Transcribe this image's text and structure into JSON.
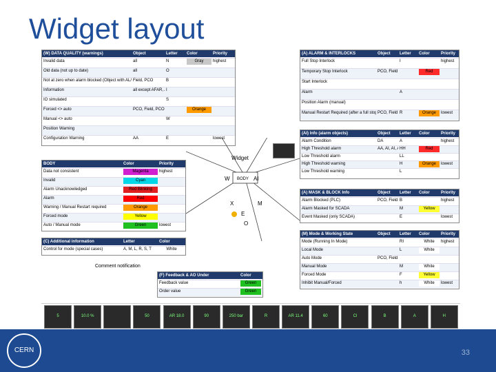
{
  "slide": {
    "title": "Widget layout",
    "page_number": "33",
    "logo_text": "CERN"
  },
  "data_quality": {
    "header": [
      "(W) DATA QUALITY (warnings)",
      "Object",
      "Letter",
      "Color",
      "Priority"
    ],
    "rows": [
      [
        "Invalid data",
        "all",
        "N",
        "Gray",
        "highest"
      ],
      [
        "Old data (not up to date)",
        "all",
        "O",
        "",
        ""
      ],
      [
        "Not at zero when alarm blocked (Object with AL/S..)",
        "Field, PCO",
        "B",
        "",
        ""
      ],
      [
        "Information",
        "all except AFAR, ASTATUS",
        "I",
        "",
        ""
      ],
      [
        "IO simulated",
        "",
        "S",
        "",
        ""
      ],
      [
        "Forced <> auto",
        "PCO, Field, PCO",
        "",
        "Orange",
        ""
      ],
      [
        "Manual <> auto",
        "",
        "W",
        "",
        ""
      ],
      [
        "Position Warning",
        "",
        "",
        "",
        ""
      ],
      [
        "Configuration Warning",
        "AA",
        "E",
        "",
        "lowest"
      ]
    ]
  },
  "alarm_objects": {
    "header": [
      "(A) ALARM & INTERLOCKS",
      "Object",
      "Letter",
      "Color",
      "Priority"
    ],
    "rows": [
      [
        "Full Stop Interlock",
        "",
        "I",
        "",
        "highest"
      ],
      [
        "Temporary Stop Interlock",
        "PCO, Field",
        "",
        "Red",
        ""
      ],
      [
        "Start Interlock",
        "",
        "",
        "",
        ""
      ],
      [
        "Alarm",
        "",
        "A",
        "",
        ""
      ],
      [
        "Position Alarm (manual)",
        "",
        "",
        "",
        ""
      ],
      [
        "Manual Restart Required (after a full stop Interlock)",
        "PCO, Field",
        "R",
        "Orange",
        "lowest"
      ]
    ]
  },
  "alarm_info": {
    "header": [
      "(AI) Info (alarm objects)",
      "Object",
      "Letter",
      "Color",
      "Priority"
    ],
    "rows": [
      [
        "Alarm Condition",
        "DA",
        "A",
        "",
        "highest"
      ],
      [
        "High Threshold alarm",
        "AA, AI, AI, AO, AIR",
        "HH",
        "Red",
        ""
      ],
      [
        "Low Threshold alarm",
        "",
        "LL",
        "",
        ""
      ],
      [
        "High Threshold warning",
        "",
        "H",
        "Orange",
        "lowest"
      ],
      [
        "Low Threshold warning",
        "",
        "L",
        "",
        ""
      ]
    ]
  },
  "mask_block": {
    "header": [
      "(A) MASK & BLOCK Info",
      "Object",
      "Letter",
      "Color",
      "Priority"
    ],
    "rows": [
      [
        "Alarm Blocked (PLC)",
        "PCO, Field, All",
        "B",
        "",
        "highest"
      ],
      [
        "Alarm Masked for SCADA",
        "",
        "M",
        "Yellow",
        ""
      ],
      [
        "Event Masked (only SCADA)",
        "",
        "E",
        "",
        "lowest"
      ]
    ]
  },
  "mode_state": {
    "header": [
      "(M) Mode & Working State",
      "Object",
      "Letter",
      "Color",
      "Priority"
    ],
    "rows": [
      [
        "Mode (Running In Mode)",
        "",
        "RI",
        "White",
        "highest"
      ],
      [
        "Local Mode",
        "",
        "L",
        "White",
        ""
      ],
      [
        "Auto Mode",
        "PCO, Field, PID",
        "",
        "",
        ""
      ],
      [
        "Manual Mode",
        "",
        "M",
        "White",
        ""
      ],
      [
        "Forced Mode",
        "",
        "F",
        "Yellow",
        ""
      ],
      [
        "Inhibit Manual/Forced",
        "",
        "h",
        "White",
        "lowest"
      ]
    ]
  },
  "body": {
    "header": [
      "BODY",
      "Color",
      "Priority"
    ],
    "rows": [
      [
        "Data not consistent",
        "Magenta",
        "highest",
        "#d020d0"
      ],
      [
        "Invalid",
        "Cyan",
        "",
        "#00d8e8"
      ],
      [
        "Alarm Unacknowledged",
        "Red Blinking",
        "",
        "#e02020"
      ],
      [
        "Alarm",
        "Red",
        "",
        "#ff0000"
      ],
      [
        "Warning / Manual Restart required",
        "Orange",
        "",
        "#ff9a00"
      ],
      [
        "Forced mode",
        "Yellow",
        "",
        "#ffff00"
      ],
      [
        "Auto / Manual mode",
        "Green",
        "lowest",
        "#20c020"
      ]
    ]
  },
  "additional_info": {
    "header": [
      "(C) Additional information",
      "Letter",
      "Color"
    ],
    "rows": [
      [
        "Control for mode (special cases)",
        "A, M, L, R, S, T",
        "White"
      ]
    ]
  },
  "comment_notification": "Comment notification",
  "feedback": {
    "header": [
      "(F) Feedback & AO Under",
      "",
      "Color"
    ],
    "rows": [
      [
        "Feedback value",
        "",
        "Green"
      ],
      [
        "Order value",
        "",
        "Green"
      ]
    ]
  },
  "center_widget": {
    "title": "Widget",
    "labels": [
      "W",
      "AI",
      "BODY",
      "X",
      "M",
      "E",
      "O"
    ]
  },
  "bottom_tiles": [
    {
      "label": "Analog Data Input",
      "value": "5"
    },
    {
      "label": "AnaDO Switch on Data",
      "value": "10.0 %"
    },
    {
      "label": "Analog Output disconnected",
      "value": ""
    },
    {
      "label": "Analog Forced Mode",
      "value": "50"
    },
    {
      "label": "Analog Auto Required & Interlock",
      "value": "AR 18.0"
    },
    {
      "label": "Analog Warning & Forced Mode",
      "value": "90"
    },
    {
      "label": "AI Alarm Masked",
      "value": "250 bar"
    },
    {
      "label": "PID Manual & Regulation Simulated",
      "value": "R"
    },
    {
      "label": "OnOff Inhibit Manual & Mode",
      "value": "AR 11.4"
    },
    {
      "label": "OnOff Temporary Stop Interlock",
      "value": "60"
    },
    {
      "label": "OnOff Start Interlock Active",
      "value": "Cl"
    },
    {
      "label": "DA Alarm On",
      "value": "B"
    },
    {
      "label": "AA Blocked alarm",
      "value": "A"
    },
    {
      "label": "AA Warning High",
      "value": "H"
    }
  ],
  "colors": {
    "header": "#1f3a6b",
    "title": "#1f4e9a",
    "footer": "#1d4a91"
  }
}
